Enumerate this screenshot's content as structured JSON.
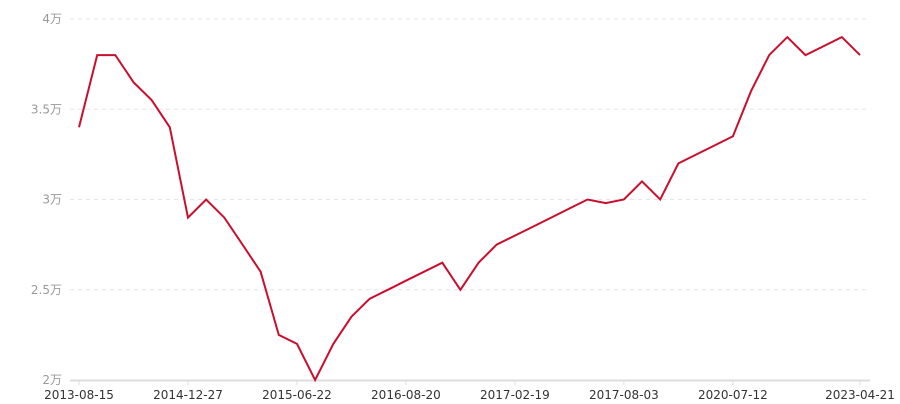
{
  "chart_data": {
    "type": "line",
    "title": "",
    "xlabel": "",
    "ylabel": "",
    "ylim": [
      2,
      4
    ],
    "y_ticks": [
      {
        "value": 4,
        "label": "4万"
      },
      {
        "value": 3.5,
        "label": "3.5万"
      },
      {
        "value": 3,
        "label": "3万"
      },
      {
        "value": 2.5,
        "label": "2.5万"
      },
      {
        "value": 2,
        "label": "2万"
      }
    ],
    "x_ticks": [
      {
        "index": 0,
        "label": "2013-08-15"
      },
      {
        "index": 6,
        "label": "2014-12-27"
      },
      {
        "index": 12,
        "label": "2015-06-22"
      },
      {
        "index": 18,
        "label": "2016-08-20"
      },
      {
        "index": 24,
        "label": "2017-02-19"
      },
      {
        "index": 30,
        "label": "2017-08-03"
      },
      {
        "index": 36,
        "label": "2020-07-12"
      },
      {
        "index": 43,
        "label": "2023-04-21"
      }
    ],
    "grid": "horizontal dashed",
    "line_color": "#c8102e",
    "series": [
      {
        "values": [
          3.4,
          3.8,
          3.8,
          3.65,
          3.55,
          3.4,
          2.9,
          3.0,
          2.9,
          2.75,
          2.6,
          2.25,
          2.2,
          2.0,
          2.2,
          2.35,
          2.45,
          2.5,
          2.55,
          2.6,
          2.65,
          2.5,
          2.65,
          2.75,
          2.8,
          2.85,
          2.9,
          2.95,
          3.0,
          2.98,
          3.0,
          3.1,
          3.0,
          3.2,
          3.25,
          3.3,
          3.35,
          3.6,
          3.8,
          3.9,
          3.8,
          3.85,
          3.9,
          3.8
        ]
      }
    ]
  }
}
